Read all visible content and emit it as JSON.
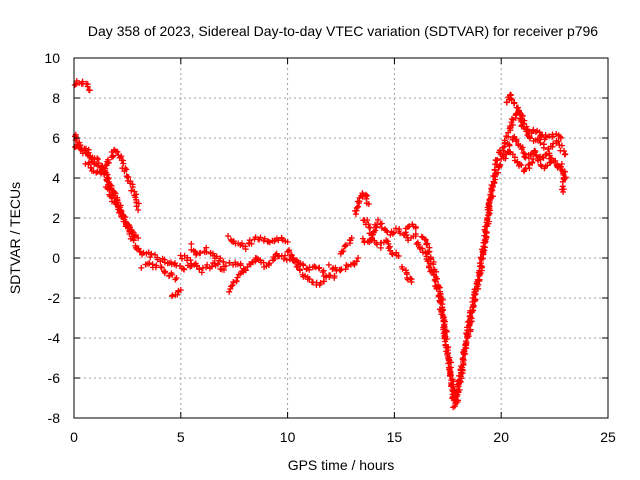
{
  "chart_data": {
    "type": "scatter",
    "title": "Day 358 of 2023, Sidereal Day-to-day VTEC variation (SDTVAR) for receiver p796",
    "xlabel": "GPS time / hours",
    "ylabel": "SDTVAR / TECUs",
    "xlim": [
      0,
      25
    ],
    "ylim": [
      -8,
      10
    ],
    "x_ticks": [
      0,
      5,
      10,
      15,
      20,
      25
    ],
    "y_ticks": [
      -8,
      -6,
      -4,
      -2,
      0,
      2,
      4,
      6,
      8,
      10
    ],
    "grid": true,
    "marker": "+",
    "series": [
      {
        "name": "SDTVAR",
        "color": "#ff0000",
        "tracks": [
          [
            [
              0.0,
              8.7
            ],
            [
              0.3,
              8.8
            ],
            [
              0.6,
              8.6
            ],
            [
              0.7,
              8.4
            ]
          ],
          [
            [
              0.0,
              6.2
            ],
            [
              0.2,
              5.8
            ],
            [
              0.4,
              5.4
            ],
            [
              0.7,
              5.2
            ],
            [
              1.0,
              5.0
            ],
            [
              1.3,
              4.6
            ],
            [
              1.6,
              4.0
            ],
            [
              1.9,
              3.2
            ],
            [
              2.2,
              2.4
            ],
            [
              2.5,
              1.6
            ],
            [
              2.8,
              0.8
            ],
            [
              3.1,
              0.3
            ],
            [
              3.5,
              0.2
            ],
            [
              4.0,
              -0.1
            ],
            [
              4.5,
              -0.3
            ],
            [
              5.0,
              -0.5
            ],
            [
              5.5,
              -0.4
            ]
          ],
          [
            [
              0.0,
              5.5
            ],
            [
              0.3,
              5.6
            ],
            [
              0.6,
              5.4
            ],
            [
              0.8,
              5.0
            ],
            [
              1.1,
              4.6
            ],
            [
              1.4,
              4.2
            ],
            [
              1.7,
              3.6
            ],
            [
              2.0,
              2.8
            ],
            [
              2.3,
              2.0
            ],
            [
              2.6,
              1.2
            ]
          ],
          [
            [
              0.6,
              4.8
            ],
            [
              0.9,
              4.4
            ],
            [
              1.2,
              4.3
            ],
            [
              1.5,
              4.6
            ],
            [
              1.7,
              5.0
            ],
            [
              1.9,
              5.4
            ],
            [
              2.1,
              5.2
            ],
            [
              2.3,
              4.6
            ],
            [
              2.6,
              3.8
            ],
            [
              2.9,
              3.0
            ],
            [
              3.0,
              2.4
            ]
          ],
          [
            [
              1.5,
              3.6
            ],
            [
              1.8,
              3.0
            ],
            [
              2.1,
              2.4
            ],
            [
              2.4,
              1.8
            ],
            [
              2.7,
              1.4
            ],
            [
              3.0,
              1.0
            ]
          ],
          [
            [
              3.2,
              -0.4
            ],
            [
              3.6,
              -0.3
            ],
            [
              4.0,
              -0.5
            ],
            [
              4.4,
              -0.8
            ],
            [
              4.8,
              -1.0
            ]
          ],
          [
            [
              4.6,
              -2.0
            ],
            [
              4.8,
              -1.8
            ],
            [
              5.0,
              -1.6
            ]
          ],
          [
            [
              5.0,
              0.1
            ],
            [
              5.5,
              -0.2
            ],
            [
              6.0,
              -0.6
            ],
            [
              6.5,
              -0.3
            ],
            [
              7.0,
              -0.5
            ],
            [
              7.5,
              -0.2
            ],
            [
              8.0,
              -0.5
            ],
            [
              8.5,
              0.0
            ]
          ],
          [
            [
              5.5,
              0.6
            ],
            [
              5.8,
              0.2
            ],
            [
              6.2,
              0.4
            ],
            [
              6.6,
              0.0
            ],
            [
              7.0,
              -0.2
            ]
          ],
          [
            [
              7.3,
              -1.6
            ],
            [
              7.5,
              -1.2
            ],
            [
              7.8,
              -0.8
            ],
            [
              8.0,
              -0.6
            ]
          ],
          [
            [
              7.2,
              1.0
            ],
            [
              7.6,
              0.8
            ],
            [
              8.0,
              0.5
            ],
            [
              8.4,
              0.9
            ],
            [
              8.8,
              1.0
            ],
            [
              9.2,
              0.8
            ],
            [
              9.6,
              1.0
            ],
            [
              10.0,
              0.8
            ]
          ],
          [
            [
              8.5,
              0.0
            ],
            [
              9.0,
              -0.4
            ],
            [
              9.5,
              0.2
            ],
            [
              10.0,
              0.0
            ],
            [
              10.5,
              -0.2
            ],
            [
              11.0,
              -0.6
            ],
            [
              11.4,
              -0.4
            ],
            [
              11.8,
              -0.9
            ]
          ],
          [
            [
              10.0,
              0.5
            ],
            [
              10.4,
              -0.3
            ],
            [
              10.8,
              -1.0
            ],
            [
              11.2,
              -1.2
            ],
            [
              11.6,
              -1.3
            ],
            [
              11.9,
              -1.0
            ],
            [
              12.2,
              -0.9
            ]
          ],
          [
            [
              12.0,
              -0.4
            ],
            [
              12.5,
              -0.6
            ],
            [
              13.0,
              -0.3
            ],
            [
              13.3,
              0.0
            ]
          ],
          [
            [
              12.5,
              0.2
            ],
            [
              12.8,
              0.7
            ],
            [
              13.0,
              1.0
            ]
          ],
          [
            [
              13.2,
              2.2
            ],
            [
              13.3,
              2.8
            ],
            [
              13.5,
              3.2
            ],
            [
              13.7,
              3.1
            ],
            [
              13.8,
              2.7
            ]
          ],
          [
            [
              13.6,
              2.0
            ],
            [
              13.8,
              1.5
            ],
            [
              14.0,
              0.9
            ],
            [
              14.3,
              0.6
            ],
            [
              14.6,
              0.8
            ],
            [
              14.9,
              0.3
            ],
            [
              15.2,
              0.1
            ]
          ],
          [
            [
              13.5,
              1.0
            ],
            [
              13.8,
              0.7
            ],
            [
              14.1,
              1.6
            ],
            [
              14.3,
              1.8
            ],
            [
              14.5,
              1.5
            ],
            [
              14.8,
              1.2
            ],
            [
              15.1,
              1.4
            ],
            [
              15.4,
              1.2
            ],
            [
              15.7,
              1.0
            ],
            [
              16.0,
              1.2
            ]
          ],
          [
            [
              15.4,
              -0.5
            ],
            [
              15.6,
              -0.8
            ],
            [
              15.8,
              -1.2
            ]
          ],
          [
            [
              15.5,
              1.4
            ],
            [
              15.8,
              1.7
            ],
            [
              16.0,
              1.5
            ]
          ],
          [
            [
              16.0,
              0.8
            ],
            [
              16.3,
              0.4
            ],
            [
              16.6,
              -0.2
            ],
            [
              16.9,
              -1.0
            ],
            [
              17.2,
              -2.2
            ],
            [
              17.4,
              -3.8
            ],
            [
              17.6,
              -5.4
            ],
            [
              17.8,
              -6.8
            ],
            [
              17.9,
              -7.2
            ],
            [
              18.0,
              -6.4
            ],
            [
              18.2,
              -5.2
            ],
            [
              18.4,
              -3.8
            ],
            [
              18.7,
              -2.2
            ],
            [
              19.0,
              -0.6
            ],
            [
              19.2,
              0.8
            ],
            [
              19.4,
              2.2
            ],
            [
              19.6,
              3.6
            ],
            [
              19.8,
              4.8
            ],
            [
              20.0,
              5.3
            ],
            [
              20.2,
              5.8
            ],
            [
              20.4,
              6.4
            ],
            [
              20.6,
              7.0
            ],
            [
              20.8,
              7.4
            ],
            [
              21.0,
              7.0
            ],
            [
              21.2,
              6.4
            ],
            [
              21.4,
              6.0
            ],
            [
              21.8,
              5.8
            ],
            [
              22.2,
              5.5
            ],
            [
              22.6,
              5.8
            ],
            [
              23.0,
              5.2
            ]
          ],
          [
            [
              16.3,
              1.1
            ],
            [
              16.5,
              0.8
            ],
            [
              16.7,
              0.0
            ],
            [
              16.9,
              -0.8
            ],
            [
              17.1,
              -1.8
            ],
            [
              17.3,
              -3.2
            ],
            [
              17.5,
              -4.8
            ],
            [
              17.7,
              -6.2
            ],
            [
              17.8,
              -7.4
            ],
            [
              18.1,
              -6.0
            ],
            [
              18.3,
              -4.6
            ],
            [
              18.6,
              -3.0
            ],
            [
              18.9,
              -1.4
            ],
            [
              19.1,
              0.0
            ],
            [
              19.3,
              1.4
            ],
            [
              19.5,
              2.8
            ],
            [
              19.7,
              4.0
            ],
            [
              19.9,
              4.6
            ],
            [
              20.1,
              5.0
            ],
            [
              20.3,
              5.4
            ],
            [
              20.6,
              5.0
            ],
            [
              20.9,
              4.6
            ],
            [
              21.2,
              4.4
            ],
            [
              21.6,
              5.0
            ],
            [
              22.0,
              4.6
            ],
            [
              22.4,
              4.8
            ],
            [
              22.8,
              4.6
            ],
            [
              23.0,
              4.0
            ]
          ],
          [
            [
              20.2,
              7.8
            ],
            [
              20.4,
              8.2
            ],
            [
              20.7,
              7.6
            ],
            [
              21.0,
              6.6
            ],
            [
              21.3,
              6.2
            ],
            [
              21.6,
              6.4
            ],
            [
              22.0,
              6.0
            ],
            [
              22.4,
              6.2
            ],
            [
              22.8,
              6.0
            ]
          ],
          [
            [
              20.3,
              5.6
            ],
            [
              20.6,
              6.0
            ],
            [
              20.9,
              5.5
            ],
            [
              21.2,
              5.0
            ],
            [
              21.5,
              5.4
            ],
            [
              21.8,
              5.0
            ],
            [
              22.2,
              5.2
            ],
            [
              22.6,
              4.6
            ],
            [
              23.0,
              4.4
            ],
            [
              22.9,
              3.3
            ]
          ]
        ]
      }
    ]
  }
}
